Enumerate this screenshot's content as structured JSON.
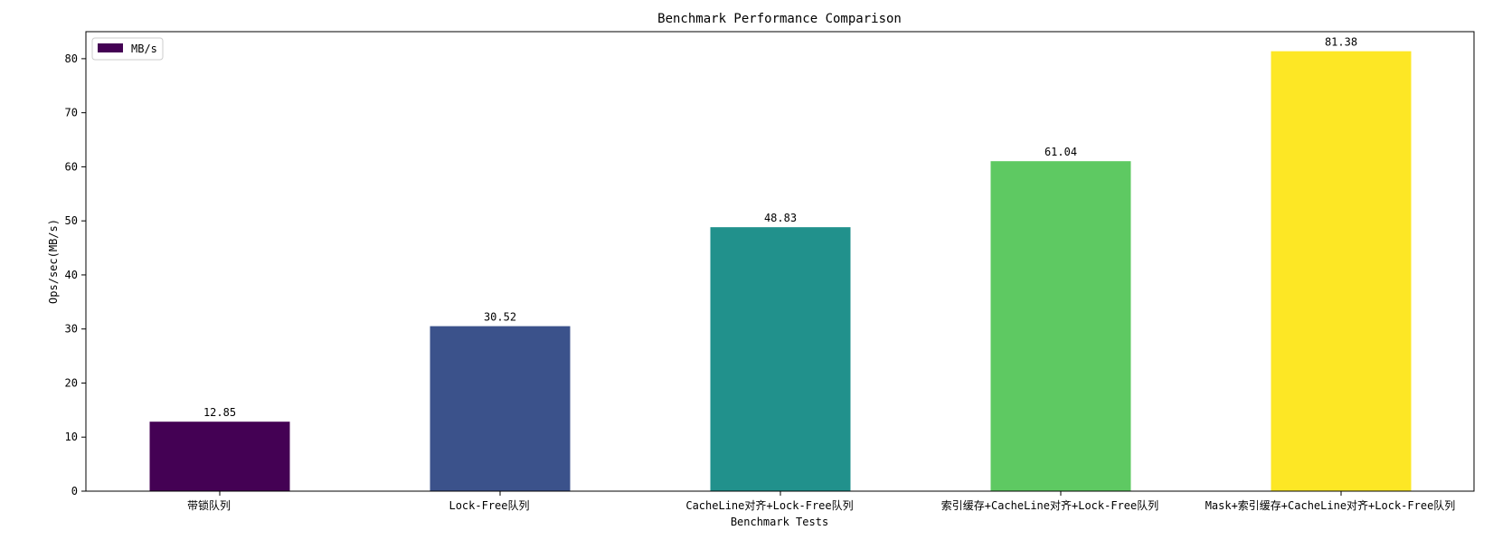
{
  "chart_data": {
    "type": "bar",
    "title": "Benchmark Performance Comparison",
    "xlabel": "Benchmark Tests",
    "ylabel": "Ops/sec(MB/s)",
    "ylim": [
      0,
      85
    ],
    "yticks": [
      0,
      10,
      20,
      30,
      40,
      50,
      60,
      70,
      80
    ],
    "categories": [
      "带锁队列",
      "Lock-Free队列",
      "CacheLine对齐+Lock-Free队列",
      "索引缓存+CacheLine对齐+Lock-Free队列",
      "Mask+索引缓存+CacheLine对齐+Lock-Free队列"
    ],
    "series": [
      {
        "name": "MB/s",
        "values": [
          12.85,
          30.52,
          48.83,
          61.04,
          81.38
        ],
        "value_labels": [
          "12.85",
          "30.52",
          "48.83",
          "61.04",
          "81.38"
        ]
      }
    ],
    "colors": [
      "#440154",
      "#3b528b",
      "#21918c",
      "#5ec962",
      "#fde725"
    ],
    "legend": {
      "position": "top-left"
    },
    "grid": false
  }
}
